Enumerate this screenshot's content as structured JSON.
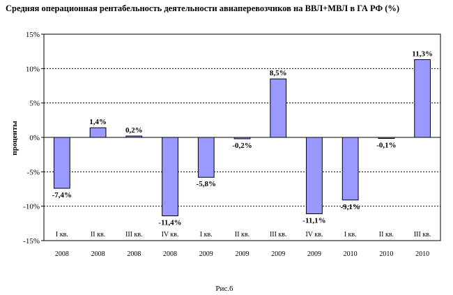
{
  "chart_data": {
    "type": "bar",
    "title": "Средняя операционная рентабельность деятельности авиаперевозчиков на ВВЛ+МВЛ в ГА РФ (%)",
    "ylabel": "проценты",
    "caption": "Рис.6",
    "ylim": [
      -15,
      15
    ],
    "yticks": [
      15,
      10,
      5,
      0,
      -5,
      -10,
      -15
    ],
    "ytick_labels": [
      "15%",
      "10%",
      "5%",
      "0%",
      "-5%",
      "-10%",
      "-15%"
    ],
    "grid": "dashed horizontal at each 5%",
    "categories": [
      {
        "quarter": "I кв.",
        "year": "2008"
      },
      {
        "quarter": "II кв.",
        "year": "2008"
      },
      {
        "quarter": "III кв.",
        "year": "2008"
      },
      {
        "quarter": "IV кв.",
        "year": "2008"
      },
      {
        "quarter": "I кв.",
        "year": "2009"
      },
      {
        "quarter": "II кв.",
        "year": "2009"
      },
      {
        "quarter": "III кв.",
        "year": "2009"
      },
      {
        "quarter": "IV кв.",
        "year": "2009"
      },
      {
        "quarter": "I кв.",
        "year": "2010"
      },
      {
        "quarter": "II кв.",
        "year": "2010"
      },
      {
        "quarter": "III кв.",
        "year": "2010"
      }
    ],
    "values": [
      -7.4,
      1.4,
      0.2,
      -11.4,
      -5.8,
      -0.2,
      8.5,
      -11.1,
      -9.1,
      -0.1,
      11.3
    ],
    "data_labels": [
      "-7,4%",
      "1,4%",
      "0,2%",
      "-11,4%",
      "-5,8%",
      "-0,2%",
      "8,5%",
      "-11,1%",
      "-9,1%",
      "-0,1%",
      "11,3%"
    ],
    "bar_color": "#9999ff",
    "bar_border": "#000000"
  }
}
